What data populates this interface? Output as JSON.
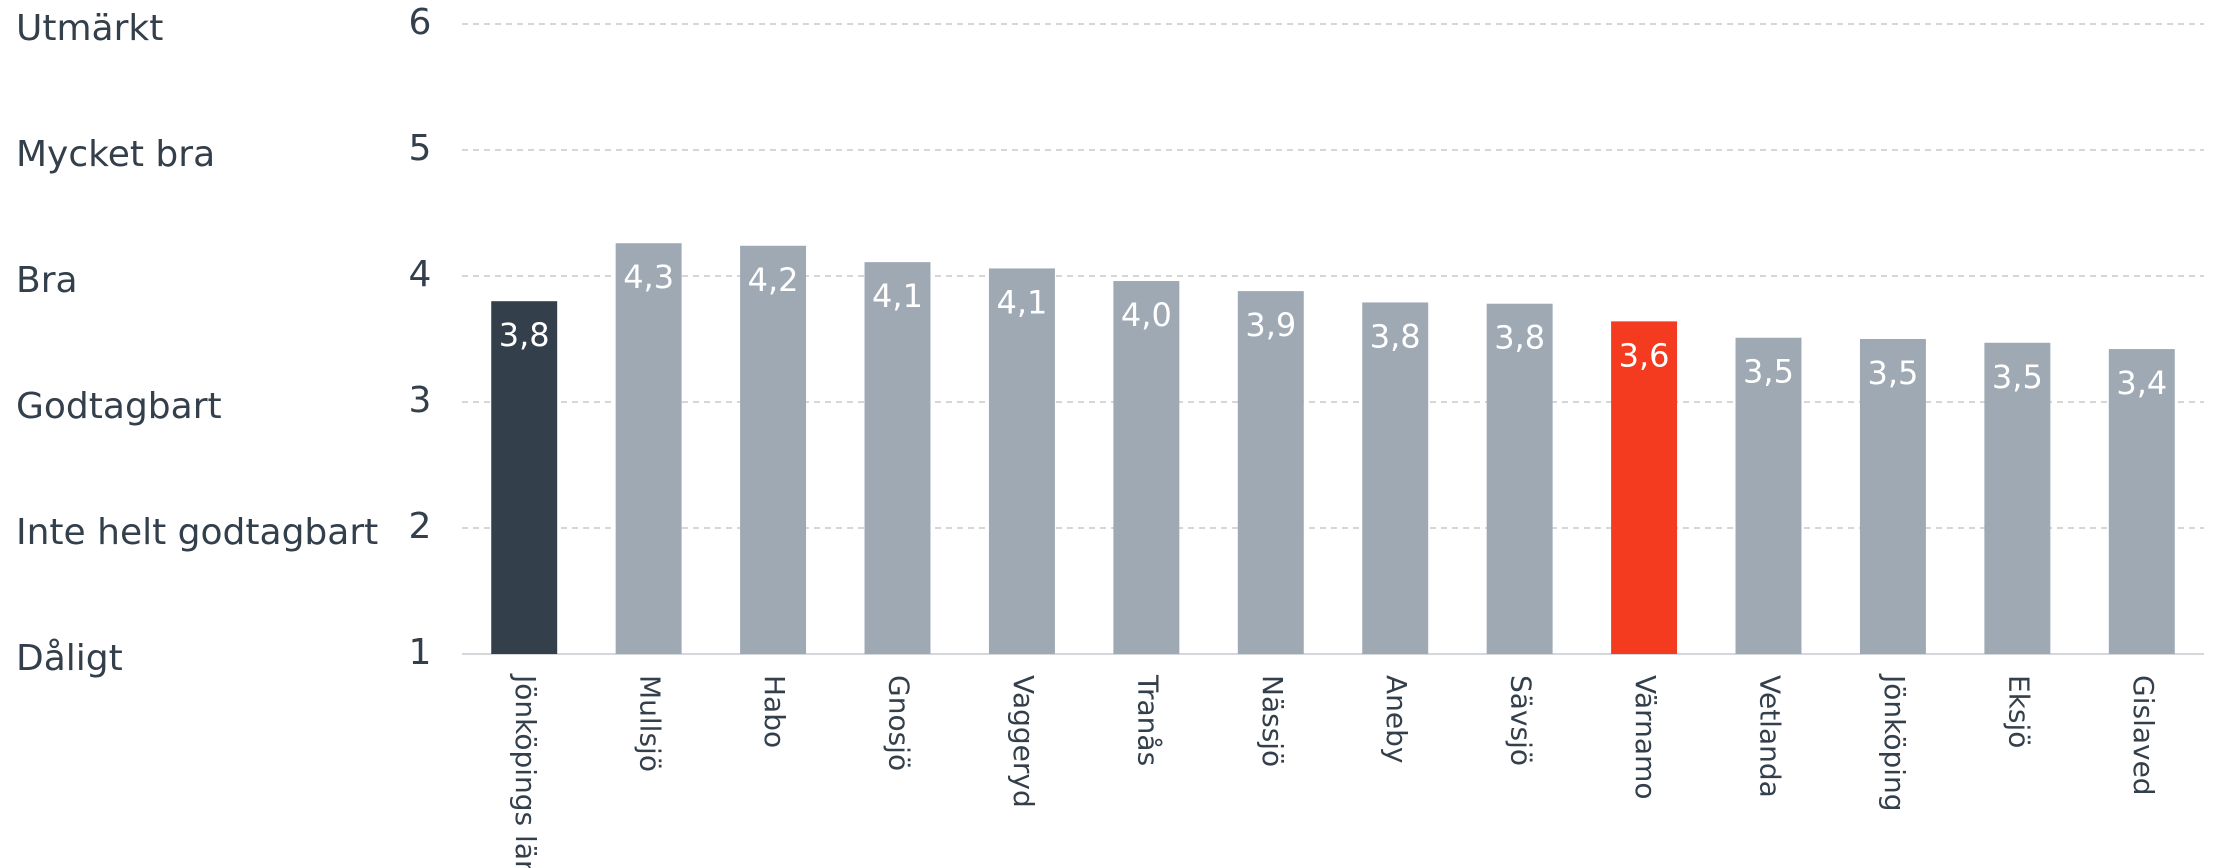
{
  "chart_data": {
    "type": "bar",
    "categories": [
      "Jönköpings län",
      "Mullsjö",
      "Habo",
      "Gnosjö",
      "Vaggeryd",
      "Tranås",
      "Nässjö",
      "Aneby",
      "Sävsjö",
      "Värnamo",
      "Vetlanda",
      "Jönköping",
      "Eksjö",
      "Gislaved"
    ],
    "values": [
      3.8,
      4.26,
      4.24,
      4.11,
      4.06,
      3.96,
      3.88,
      3.79,
      3.78,
      3.64,
      3.51,
      3.5,
      3.47,
      3.42
    ],
    "value_labels": [
      "3,8",
      "4,3",
      "4,2",
      "4,1",
      "4,1",
      "4,0",
      "3,9",
      "3,8",
      "3,8",
      "3,6",
      "3,5",
      "3,5",
      "3,5",
      "3,4"
    ],
    "colors": [
      "#333f4b",
      "#9ea9b4",
      "#9ea9b4",
      "#9ea9b4",
      "#9ea9b4",
      "#9ea9b4",
      "#9ea9b4",
      "#9ea9b4",
      "#9ea9b4",
      "#f43b1f",
      "#9ea9b4",
      "#9ea9b4",
      "#9ea9b4",
      "#9ea9b4"
    ],
    "ylim": [
      1,
      6
    ],
    "yticks": [
      1,
      2,
      3,
      4,
      5,
      6
    ],
    "y_tick_descriptions": [
      "Dåligt",
      "Inte helt godtagbart",
      "Godtagbart",
      "Bra",
      "Mycket bra",
      "Utmärkt"
    ],
    "grid": true
  }
}
